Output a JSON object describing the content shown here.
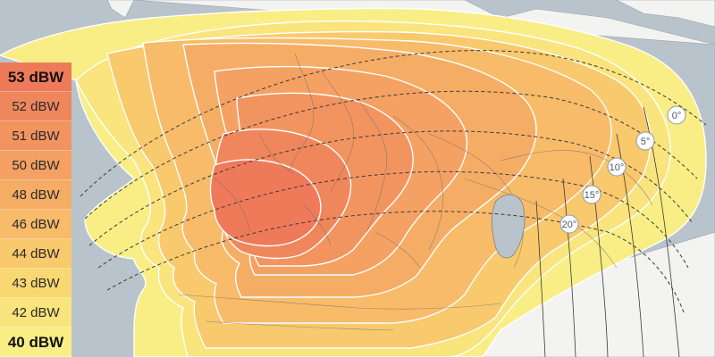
{
  "legend": {
    "items": [
      {
        "label": "53 dBW",
        "color": "#ef7a5a",
        "strong": true
      },
      {
        "label": "52 dBW",
        "color": "#f0875c",
        "strong": false
      },
      {
        "label": "51 dBW",
        "color": "#f29460",
        "strong": false
      },
      {
        "label": "50 dBW",
        "color": "#f4a163",
        "strong": false
      },
      {
        "label": "48 dBW",
        "color": "#f5ad66",
        "strong": false
      },
      {
        "label": "46 dBW",
        "color": "#f7bb69",
        "strong": false
      },
      {
        "label": "44 dBW",
        "color": "#f8c96d",
        "strong": false
      },
      {
        "label": "43 dBW",
        "color": "#f9d872",
        "strong": false
      },
      {
        "label": "42 dBW",
        "color": "#f9e47d",
        "strong": false
      },
      {
        "label": "40 dBW",
        "color": "#f9ee86",
        "strong": true
      }
    ]
  },
  "elevation_labels": [
    "0°",
    "5°",
    "10°",
    "15°",
    "20°"
  ],
  "colors": {
    "sea": "#b9c3cb",
    "land": "#f3f3f1",
    "contour": "#ffffff",
    "elevation_line": "#3a3a3a"
  }
}
